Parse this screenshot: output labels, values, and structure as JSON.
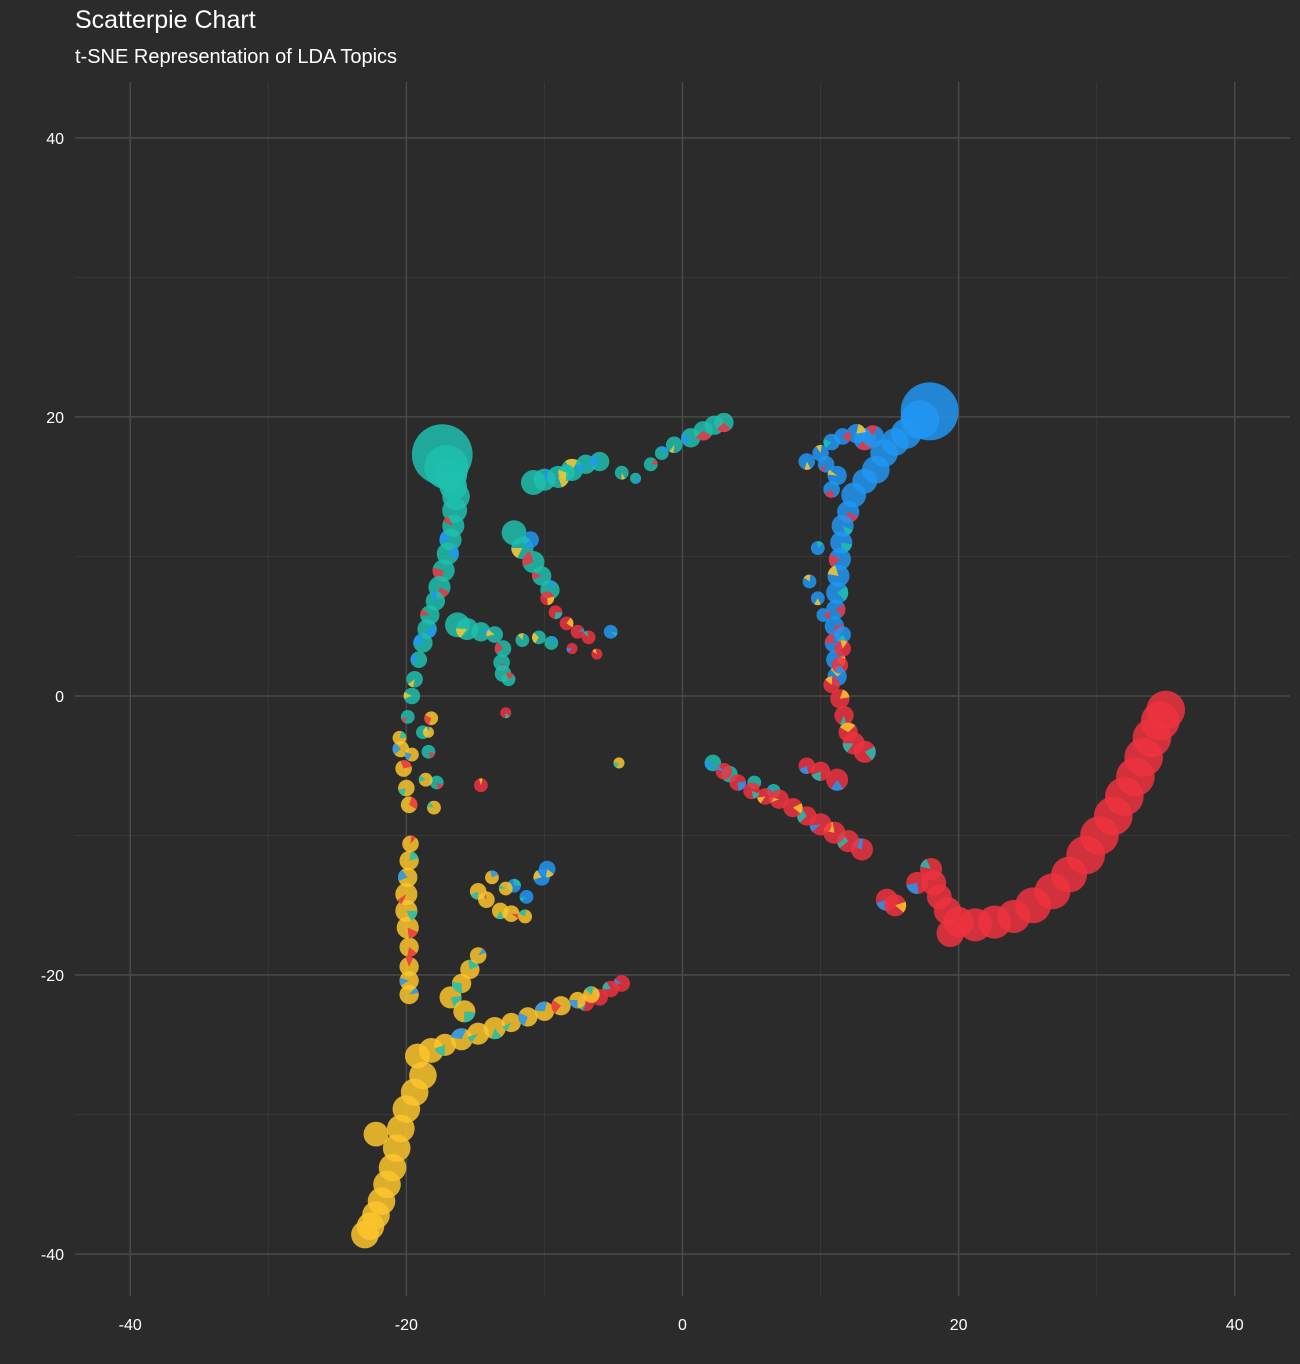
{
  "chart_data": {
    "type": "scatter",
    "title": "Scatterpie Chart",
    "subtitle": "t-SNE Representation of LDA Topics",
    "xlabel": "",
    "ylabel": "",
    "xlim": [
      -44,
      44
    ],
    "ylim": [
      -43,
      44
    ],
    "x_ticks": [
      -40,
      -20,
      0,
      20,
      40
    ],
    "y_ticks": [
      40,
      20,
      0,
      -20,
      -40
    ],
    "x_tick_labels": [
      "-40",
      "-20",
      "0",
      "20",
      "40"
    ],
    "y_tick_labels": [
      "40",
      "20",
      "0",
      "-20",
      "-40"
    ],
    "grid": true,
    "legend": "none",
    "colors": {
      "background": "#2b2b2b",
      "grid_major": "#4a4a4a",
      "grid_minor": "#383838",
      "topic_teal": "#1fbfae",
      "topic_blue": "#2196f3",
      "topic_red": "#ef3340",
      "topic_yellow": "#fbc62c"
    },
    "series": [
      {
        "color": "#1fbfae",
        "points": [
          [
            -17.4,
            17.3,
            2.2
          ],
          [
            -17.1,
            16.4,
            1.6
          ],
          [
            -16.8,
            15.8,
            1.2
          ],
          [
            -16.6,
            15.0,
            1.0
          ],
          [
            -16.4,
            14.3,
            1.0
          ],
          [
            -16.5,
            13.3,
            0.9
          ],
          [
            -16.6,
            12.2,
            0.8
          ],
          [
            -16.8,
            11.2,
            0.8
          ],
          [
            -17.0,
            10.2,
            0.8
          ],
          [
            -17.3,
            9.0,
            0.8
          ],
          [
            -17.6,
            7.8,
            0.8
          ],
          [
            -17.9,
            6.8,
            0.7
          ],
          [
            -18.3,
            5.8,
            0.7
          ],
          [
            -18.5,
            4.8,
            0.7
          ],
          [
            -18.8,
            3.8,
            0.7
          ],
          [
            -19.1,
            2.6,
            0.6
          ],
          [
            -19.4,
            1.2,
            0.6
          ],
          [
            -19.6,
            0.0,
            0.6
          ],
          [
            -19.9,
            -1.5,
            0.5
          ],
          [
            -16.3,
            5.1,
            0.9
          ],
          [
            -15.6,
            4.8,
            0.8
          ],
          [
            -14.6,
            4.6,
            0.7
          ],
          [
            -13.6,
            4.4,
            0.6
          ],
          [
            -13.0,
            3.4,
            0.6
          ],
          [
            -13.1,
            2.4,
            0.6
          ],
          [
            -13.0,
            1.6,
            0.6
          ],
          [
            -12.6,
            1.2,
            0.5
          ],
          [
            -12.2,
            11.7,
            0.9
          ],
          [
            -11.6,
            10.6,
            0.8
          ],
          [
            -10.8,
            9.6,
            0.8
          ],
          [
            -10.2,
            8.6,
            0.7
          ],
          [
            -9.6,
            7.6,
            0.7
          ],
          [
            -10.8,
            15.3,
            0.9
          ],
          [
            -10.0,
            15.5,
            0.8
          ],
          [
            -9.0,
            15.7,
            0.8
          ],
          [
            -8.0,
            16.2,
            0.8
          ],
          [
            -7.0,
            16.6,
            0.7
          ],
          [
            -6.0,
            16.8,
            0.7
          ],
          [
            -8.4,
            16.0,
            0.6
          ],
          [
            0.6,
            18.5,
            0.7
          ],
          [
            1.5,
            19.0,
            0.7
          ],
          [
            2.3,
            19.4,
            0.7
          ],
          [
            3.0,
            19.6,
            0.7
          ],
          [
            -0.6,
            18.0,
            0.6
          ],
          [
            -1.5,
            17.4,
            0.5
          ],
          [
            -2.3,
            16.6,
            0.5
          ],
          [
            -4.4,
            16.0,
            0.5
          ],
          [
            -3.4,
            15.6,
            0.4
          ],
          [
            -18.8,
            -2.6,
            0.5
          ],
          [
            -18.4,
            -4.0,
            0.5
          ],
          [
            -17.8,
            -6.2,
            0.5
          ],
          [
            2.2,
            -4.8,
            0.6
          ],
          [
            3.4,
            -5.6,
            0.6
          ],
          [
            5.2,
            -6.2,
            0.5
          ],
          [
            6.6,
            -6.8,
            0.5
          ],
          [
            -9.5,
            3.8,
            0.5
          ],
          [
            -10.4,
            4.2,
            0.5
          ],
          [
            -11.6,
            4.0,
            0.5
          ]
        ]
      },
      {
        "color": "#2196f3",
        "points": [
          [
            17.9,
            20.4,
            2.1
          ],
          [
            17.2,
            19.8,
            1.4
          ],
          [
            16.2,
            18.8,
            1.1
          ],
          [
            15.4,
            18.2,
            1.0
          ],
          [
            14.6,
            17.4,
            1.0
          ],
          [
            14.0,
            16.2,
            1.0
          ],
          [
            13.2,
            15.4,
            0.9
          ],
          [
            12.4,
            14.4,
            0.9
          ],
          [
            12.0,
            13.2,
            0.8
          ],
          [
            11.6,
            12.2,
            0.8
          ],
          [
            11.5,
            11.0,
            0.8
          ],
          [
            11.4,
            9.8,
            0.8
          ],
          [
            11.3,
            8.6,
            0.8
          ],
          [
            11.2,
            7.4,
            0.8
          ],
          [
            11.1,
            6.2,
            0.7
          ],
          [
            11.0,
            5.0,
            0.7
          ],
          [
            11.0,
            3.8,
            0.7
          ],
          [
            11.1,
            2.6,
            0.7
          ],
          [
            11.2,
            1.4,
            0.7
          ],
          [
            13.2,
            18.4,
            0.8
          ],
          [
            13.8,
            18.6,
            0.8
          ],
          [
            12.6,
            18.8,
            0.7
          ],
          [
            11.6,
            18.6,
            0.6
          ],
          [
            10.8,
            18.2,
            0.6
          ],
          [
            10.0,
            17.4,
            0.6
          ],
          [
            9.0,
            16.8,
            0.6
          ],
          [
            10.4,
            16.6,
            0.6
          ],
          [
            11.2,
            15.8,
            0.7
          ],
          [
            10.8,
            14.8,
            0.6
          ],
          [
            9.8,
            10.6,
            0.5
          ],
          [
            9.2,
            8.2,
            0.5
          ],
          [
            9.8,
            7.0,
            0.5
          ],
          [
            10.2,
            5.8,
            0.5
          ],
          [
            11.6,
            4.4,
            0.6
          ],
          [
            -11.0,
            11.2,
            0.6
          ],
          [
            -5.2,
            4.6,
            0.5
          ],
          [
            -10.2,
            -13.0,
            0.6
          ],
          [
            -9.8,
            -12.4,
            0.6
          ],
          [
            -11.3,
            -14.4,
            0.5
          ],
          [
            -12.2,
            -13.6,
            0.5
          ]
        ]
      },
      {
        "color": "#ef3340",
        "points": [
          [
            35.0,
            -1.0,
            1.4
          ],
          [
            34.6,
            -1.8,
            1.4
          ],
          [
            34.0,
            -3.0,
            1.4
          ],
          [
            33.4,
            -4.4,
            1.4
          ],
          [
            32.8,
            -5.8,
            1.4
          ],
          [
            32.0,
            -7.2,
            1.4
          ],
          [
            31.2,
            -8.6,
            1.4
          ],
          [
            30.2,
            -10.0,
            1.4
          ],
          [
            29.2,
            -11.4,
            1.4
          ],
          [
            28.0,
            -12.8,
            1.3
          ],
          [
            26.8,
            -14.0,
            1.3
          ],
          [
            25.4,
            -15.0,
            1.3
          ],
          [
            24.0,
            -15.8,
            1.2
          ],
          [
            22.6,
            -16.2,
            1.2
          ],
          [
            21.2,
            -16.4,
            1.2
          ],
          [
            20.0,
            -16.2,
            1.1
          ],
          [
            19.2,
            -15.4,
            1.0
          ],
          [
            18.6,
            -14.4,
            0.9
          ],
          [
            18.2,
            -13.4,
            0.9
          ],
          [
            18.0,
            -12.4,
            0.8
          ],
          [
            19.4,
            -17.0,
            1.0
          ],
          [
            17.0,
            -13.4,
            0.8
          ],
          [
            14.8,
            -14.6,
            0.8
          ],
          [
            15.4,
            -15.0,
            0.8
          ],
          [
            11.4,
            -0.2,
            0.7
          ],
          [
            11.7,
            -1.4,
            0.7
          ],
          [
            12.0,
            -2.6,
            0.7
          ],
          [
            12.4,
            -3.4,
            0.8
          ],
          [
            13.2,
            -4.0,
            0.8
          ],
          [
            11.6,
            3.4,
            0.6
          ],
          [
            11.4,
            2.2,
            0.6
          ],
          [
            10.8,
            0.8,
            0.6
          ],
          [
            13.0,
            -11.0,
            0.8
          ],
          [
            12.0,
            -10.4,
            0.8
          ],
          [
            11.0,
            -9.8,
            0.8
          ],
          [
            10.0,
            -9.2,
            0.8
          ],
          [
            9.0,
            -8.6,
            0.7
          ],
          [
            8.0,
            -8.0,
            0.7
          ],
          [
            7.0,
            -7.4,
            0.7
          ],
          [
            6.0,
            -7.2,
            0.6
          ],
          [
            5.0,
            -6.8,
            0.6
          ],
          [
            4.0,
            -6.2,
            0.6
          ],
          [
            3.0,
            -5.4,
            0.6
          ],
          [
            11.2,
            -6.0,
            0.8
          ],
          [
            10.0,
            -5.4,
            0.7
          ],
          [
            9.0,
            -5.0,
            0.6
          ],
          [
            -4.4,
            -20.6,
            0.6
          ],
          [
            -5.2,
            -21.0,
            0.6
          ],
          [
            -6.0,
            -21.6,
            0.6
          ],
          [
            -7.0,
            -22.0,
            0.6
          ],
          [
            -9.8,
            7.0,
            0.5
          ],
          [
            -9.2,
            6.0,
            0.5
          ],
          [
            -8.4,
            5.2,
            0.5
          ],
          [
            -7.6,
            4.6,
            0.5
          ],
          [
            -6.8,
            4.2,
            0.5
          ],
          [
            -8.0,
            3.4,
            0.4
          ],
          [
            -6.2,
            3.0,
            0.4
          ],
          [
            -14.6,
            -6.4,
            0.5
          ],
          [
            -12.8,
            -1.2,
            0.4
          ]
        ]
      },
      {
        "color": "#fbc62c",
        "points": [
          [
            -23.0,
            -38.6,
            1.0
          ],
          [
            -22.6,
            -38.0,
            1.0
          ],
          [
            -22.2,
            -37.2,
            1.0
          ],
          [
            -21.8,
            -36.2,
            1.0
          ],
          [
            -21.4,
            -35.0,
            1.0
          ],
          [
            -21.0,
            -33.8,
            1.0
          ],
          [
            -20.7,
            -32.4,
            1.0
          ],
          [
            -20.4,
            -31.0,
            1.0
          ],
          [
            -20.0,
            -29.6,
            1.0
          ],
          [
            -19.4,
            -28.4,
            1.0
          ],
          [
            -18.8,
            -27.2,
            1.0
          ],
          [
            -19.2,
            -25.8,
            0.9
          ],
          [
            -18.2,
            -25.4,
            0.9
          ],
          [
            -17.2,
            -25.0,
            0.8
          ],
          [
            -16.0,
            -24.6,
            0.8
          ],
          [
            -14.8,
            -24.2,
            0.8
          ],
          [
            -13.6,
            -23.8,
            0.8
          ],
          [
            -12.4,
            -23.4,
            0.7
          ],
          [
            -11.2,
            -23.0,
            0.7
          ],
          [
            -10.0,
            -22.6,
            0.7
          ],
          [
            -8.8,
            -22.2,
            0.7
          ],
          [
            -7.6,
            -21.8,
            0.6
          ],
          [
            -6.6,
            -21.4,
            0.6
          ],
          [
            -22.2,
            -31.4,
            0.9
          ],
          [
            -19.8,
            -21.4,
            0.7
          ],
          [
            -19.8,
            -20.4,
            0.7
          ],
          [
            -19.8,
            -19.4,
            0.7
          ],
          [
            -19.8,
            -18.0,
            0.7
          ],
          [
            -19.9,
            -16.6,
            0.8
          ],
          [
            -20.0,
            -15.4,
            0.8
          ],
          [
            -20.0,
            -14.2,
            0.8
          ],
          [
            -19.9,
            -13.0,
            0.7
          ],
          [
            -19.8,
            -11.8,
            0.7
          ],
          [
            -19.7,
            -10.6,
            0.6
          ],
          [
            -19.8,
            -7.8,
            0.6
          ],
          [
            -20.0,
            -6.6,
            0.6
          ],
          [
            -20.2,
            -5.2,
            0.6
          ],
          [
            -20.4,
            -3.8,
            0.6
          ],
          [
            -20.5,
            -3.0,
            0.5
          ],
          [
            -19.6,
            -4.2,
            0.5
          ],
          [
            -18.6,
            -6.0,
            0.5
          ],
          [
            -18.0,
            -8.0,
            0.5
          ],
          [
            -16.8,
            -21.6,
            0.8
          ],
          [
            -16.0,
            -20.6,
            0.7
          ],
          [
            -15.4,
            -19.6,
            0.7
          ],
          [
            -14.8,
            -18.6,
            0.6
          ],
          [
            -15.8,
            -22.6,
            0.8
          ],
          [
            -14.2,
            -14.6,
            0.6
          ],
          [
            -13.2,
            -15.4,
            0.6
          ],
          [
            -12.4,
            -15.6,
            0.6
          ],
          [
            -11.4,
            -15.8,
            0.5
          ],
          [
            -14.8,
            -14.0,
            0.6
          ],
          [
            -12.8,
            -13.8,
            0.5
          ],
          [
            -13.8,
            -13.0,
            0.5
          ],
          [
            -18.2,
            -1.6,
            0.5
          ],
          [
            -18.4,
            -2.6,
            0.4
          ],
          [
            -4.6,
            -4.8,
            0.4
          ]
        ]
      }
    ]
  }
}
